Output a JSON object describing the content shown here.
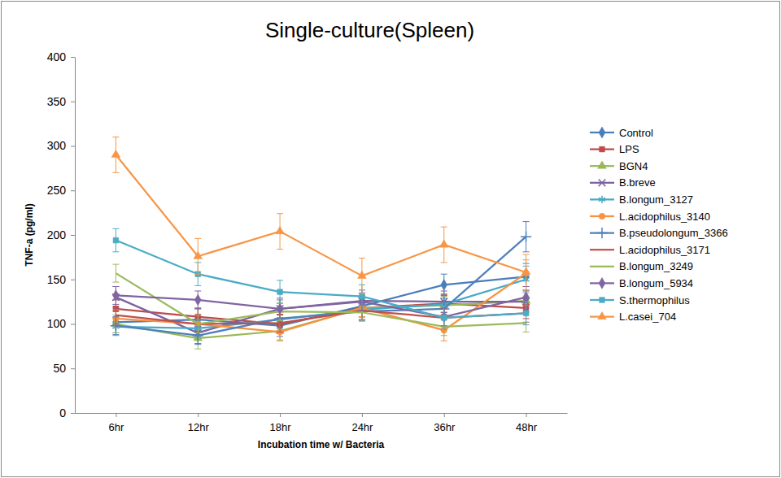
{
  "chart_data": {
    "type": "line",
    "title": "Single-culture(Spleen)",
    "x_label": "Incubation time w/ Bacteria",
    "y_label": "TNF-a (pg/ml)",
    "categories": [
      "6hr",
      "12hr",
      "18hr",
      "24hr",
      "36hr",
      "48hr"
    ],
    "ylim": [
      0,
      400
    ],
    "yticks": [
      0,
      50,
      100,
      150,
      200,
      250,
      300,
      350,
      400
    ],
    "grid": false,
    "legend": "right",
    "series": [
      {
        "name": "Control",
        "color": "#4a7ebb",
        "marker": "diamond",
        "values": [
          102,
          105,
          98,
          120,
          144,
          153
        ],
        "errors": [
          12,
          12,
          12,
          12,
          12,
          15
        ]
      },
      {
        "name": "LPS",
        "color": "#be4b48",
        "marker": "square",
        "values": [
          117,
          108,
          100,
          118,
          123,
          118
        ],
        "errors": [
          10,
          10,
          10,
          10,
          10,
          12
        ]
      },
      {
        "name": "BGN4",
        "color": "#98b954",
        "marker": "triangle",
        "values": [
          100,
          84,
          92,
          118,
          121,
          126
        ],
        "errors": [
          10,
          12,
          10,
          10,
          10,
          12
        ]
      },
      {
        "name": "B.breve",
        "color": "#7d60a0",
        "marker": "x",
        "values": [
          130,
          90,
          117,
          126,
          125,
          125
        ],
        "errors": [
          12,
          12,
          12,
          12,
          12,
          12
        ]
      },
      {
        "name": "B.longum_3127",
        "color": "#46aac5",
        "marker": "asterisk",
        "values": [
          97,
          95,
          105,
          116,
          122,
          150
        ],
        "errors": [
          10,
          10,
          10,
          12,
          12,
          15
        ]
      },
      {
        "name": "L.acidophilus_3140",
        "color": "#f69240",
        "marker": "circle",
        "values": [
          106,
          100,
          91,
          118,
          93,
          157
        ],
        "errors": [
          10,
          10,
          10,
          10,
          12,
          15
        ]
      },
      {
        "name": "B.pseudolongum_3366",
        "color": "#4f81bd",
        "marker": "plus",
        "values": [
          98,
          87,
          106,
          114,
          117,
          198
        ],
        "errors": [
          10,
          10,
          10,
          10,
          12,
          17
        ]
      },
      {
        "name": "L.acidophilus_3171",
        "color": "#c0504d",
        "marker": "none",
        "values": [
          110,
          100,
          101,
          115,
          107,
          112
        ],
        "errors": [
          10,
          10,
          10,
          10,
          10,
          10
        ]
      },
      {
        "name": "B.longum_3249",
        "color": "#9bbb59",
        "marker": "none",
        "values": [
          157,
          100,
          114,
          113,
          97,
          101
        ],
        "errors": [
          10,
          10,
          10,
          10,
          10,
          10
        ]
      },
      {
        "name": "B.longum_5934",
        "color": "#8064a2",
        "marker": "diamond",
        "values": [
          132,
          127,
          117,
          125,
          108,
          130
        ],
        "errors": [
          10,
          10,
          10,
          10,
          10,
          12
        ]
      },
      {
        "name": "S.thermophilus",
        "color": "#4bacc6",
        "marker": "square",
        "values": [
          194,
          156,
          136,
          131,
          107,
          112
        ],
        "errors": [
          13,
          13,
          13,
          13,
          13,
          13
        ]
      },
      {
        "name": "L.casei_704",
        "color": "#f79646",
        "marker": "triangle",
        "values": [
          290,
          176,
          204,
          154,
          189,
          158
        ],
        "errors": [
          20,
          20,
          20,
          20,
          20,
          20
        ]
      }
    ]
  }
}
